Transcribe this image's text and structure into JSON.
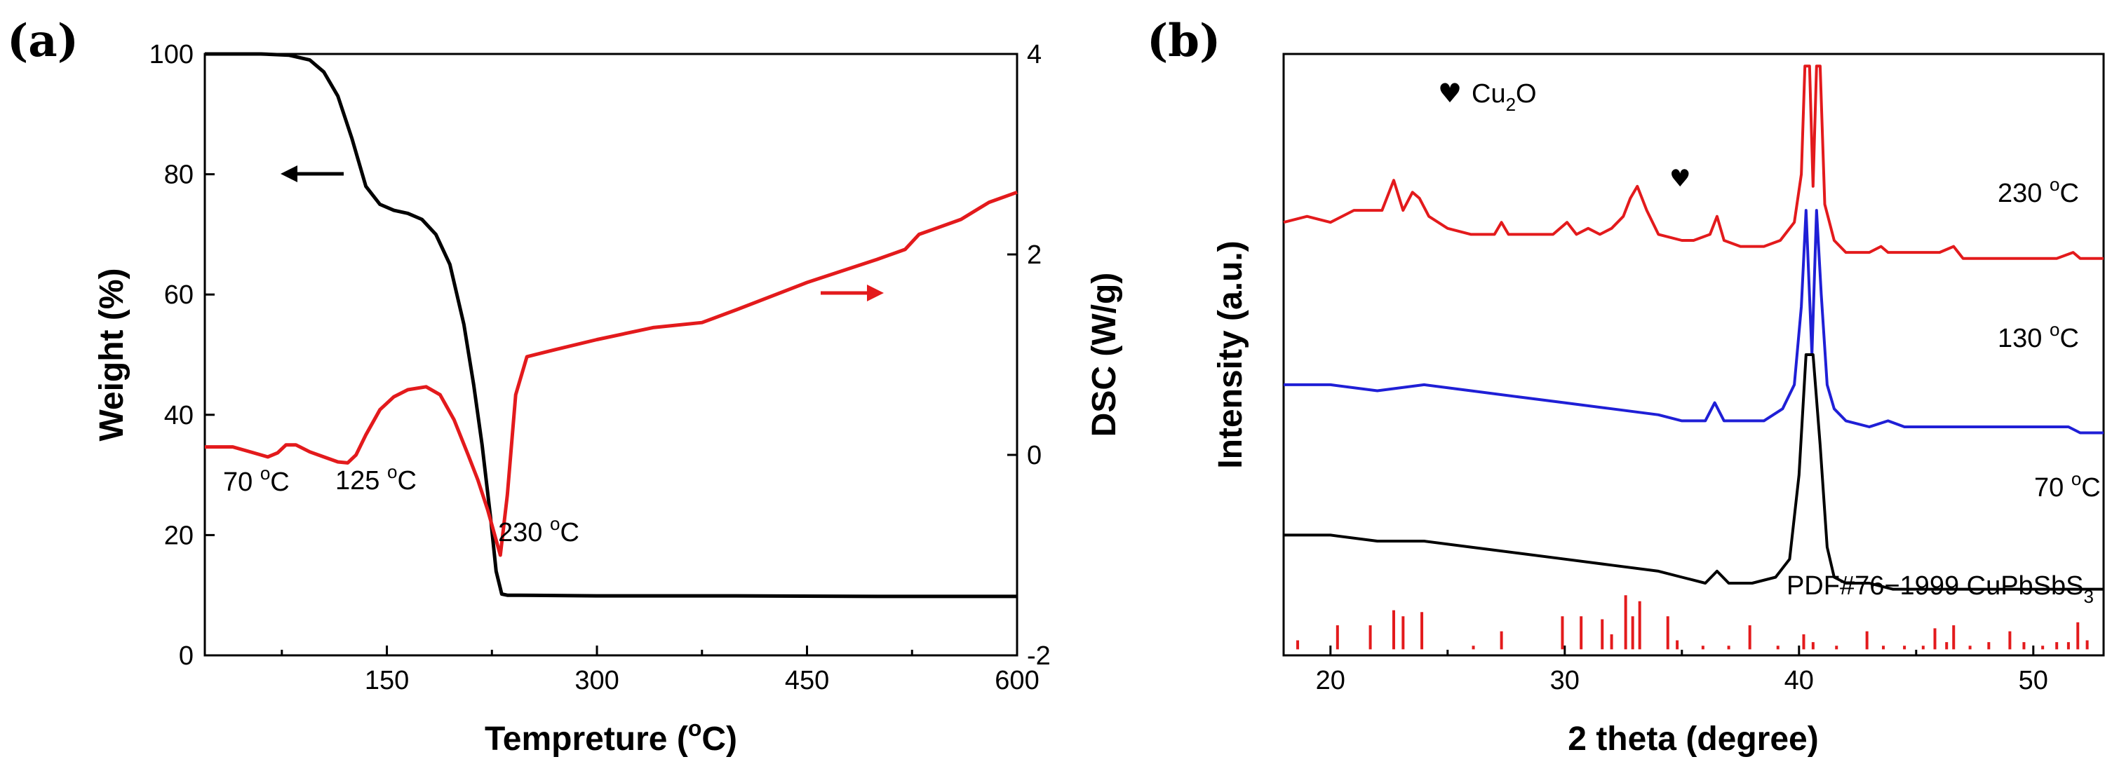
{
  "panels": {
    "a": {
      "label": "(a)",
      "xlabel_main": "Tempreture (",
      "xlabel_unit_sup": "o",
      "xlabel_end": "C)",
      "ylabel_left": "Weight (%)",
      "ylabel_right": "DSC (W/g)",
      "annotations": [
        {
          "text": "70 ",
          "sup": "o",
          "end": "C"
        },
        {
          "text": "125 ",
          "sup": "o",
          "end": "C"
        },
        {
          "text": "230 ",
          "sup": "o",
          "end": "C"
        }
      ]
    },
    "b": {
      "label": "(b)",
      "xlabel": "2 theta (degree)",
      "ylabel": "Intensity (a.u.)",
      "legend_symbol": "♥",
      "legend_text_main": "Cu",
      "legend_text_sub": "2",
      "legend_text_end": "O",
      "pdf_label_main": "PDF#76−1999 CuPbSbS",
      "pdf_label_sub": "3",
      "trace_labels": [
        {
          "text": "230 ",
          "sup": "o",
          "end": "C"
        },
        {
          "text": "130 ",
          "sup": "o",
          "end": "C"
        },
        {
          "text": "70 ",
          "sup": "o",
          "end": "C"
        }
      ]
    }
  },
  "chart_data": [
    {
      "type": "line",
      "xlim": [
        20,
        600
      ],
      "ylim": [
        0,
        100
      ],
      "y2lim": [
        -2,
        4
      ],
      "xticks": [
        150,
        300,
        450,
        600
      ],
      "yticks": [
        0,
        20,
        40,
        60,
        80,
        100
      ],
      "y2ticks": [
        -2,
        0,
        2,
        4
      ],
      "series": [
        {
          "color": "#000000",
          "axis": "left",
          "x": [
            20,
            60,
            80,
            95,
            105,
            115,
            125,
            135,
            145,
            155,
            165,
            175,
            185,
            195,
            205,
            212,
            218,
            224,
            228,
            232,
            236,
            245,
            300,
            400,
            500,
            600
          ],
          "y": [
            100,
            100,
            99.8,
            99,
            97,
            93,
            86,
            78,
            75,
            74,
            73.5,
            72.5,
            70,
            65,
            55,
            45,
            35,
            23,
            14,
            10.2,
            10,
            10,
            9.9,
            9.9,
            9.8,
            9.8
          ]
        },
        {
          "color": "#e31a1c",
          "axis": "right",
          "x": [
            20,
            40,
            55,
            65,
            72,
            78,
            85,
            95,
            105,
            115,
            122,
            128,
            135,
            145,
            155,
            165,
            178,
            188,
            198,
            208,
            215,
            222,
            228,
            231,
            236,
            242,
            250,
            270,
            300,
            340,
            375,
            400,
            450,
            500,
            520,
            530,
            540,
            560,
            580,
            600
          ],
          "y": [
            0.08,
            0.08,
            0.02,
            -0.02,
            0.02,
            0.1,
            0.1,
            0.03,
            -0.02,
            -0.07,
            -0.08,
            0.0,
            0.2,
            0.45,
            0.58,
            0.65,
            0.68,
            0.6,
            0.35,
            0.0,
            -0.25,
            -0.55,
            -0.85,
            -1.0,
            -0.4,
            0.6,
            0.98,
            1.05,
            1.15,
            1.27,
            1.32,
            1.45,
            1.72,
            1.95,
            2.05,
            2.2,
            2.25,
            2.35,
            2.52,
            2.62
          ]
        }
      ]
    },
    {
      "type": "line",
      "xlim": [
        18,
        53
      ],
      "xticks": [
        20,
        30,
        40,
        50
      ],
      "series": [
        {
          "name": "230 °C",
          "color": "#e31a1c",
          "x": [
            18,
            19,
            20,
            21,
            21.5,
            22.2,
            22.7,
            23.1,
            23.5,
            23.8,
            24.2,
            25,
            26,
            27,
            27.3,
            27.6,
            28.5,
            29.5,
            30.1,
            30.5,
            31,
            31.5,
            32,
            32.5,
            32.8,
            33.1,
            33.5,
            34,
            35,
            35.5,
            36.2,
            36.5,
            36.8,
            37.5,
            38.5,
            39.2,
            39.8,
            40.1,
            40.25,
            40.45,
            40.6,
            40.75,
            40.9,
            41.1,
            41.5,
            42,
            43,
            43.5,
            43.8,
            44.2,
            45,
            46,
            46.6,
            47,
            48,
            49,
            50,
            51,
            51.7,
            52,
            53
          ],
          "y": [
            0.72,
            0.73,
            0.72,
            0.74,
            0.74,
            0.74,
            0.79,
            0.74,
            0.77,
            0.76,
            0.73,
            0.71,
            0.7,
            0.7,
            0.72,
            0.7,
            0.7,
            0.7,
            0.72,
            0.7,
            0.71,
            0.7,
            0.71,
            0.73,
            0.76,
            0.78,
            0.74,
            0.7,
            0.69,
            0.69,
            0.7,
            0.73,
            0.69,
            0.68,
            0.68,
            0.69,
            0.72,
            0.8,
            0.98,
            0.98,
            0.78,
            0.98,
            0.98,
            0.75,
            0.69,
            0.67,
            0.67,
            0.68,
            0.67,
            0.67,
            0.67,
            0.67,
            0.68,
            0.66,
            0.66,
            0.66,
            0.66,
            0.66,
            0.67,
            0.66,
            0.66
          ]
        },
        {
          "name": "130 °C",
          "color": "#1f1fd6",
          "x": [
            18,
            20,
            22,
            24,
            26,
            28,
            30,
            32,
            34,
            35,
            36,
            36.4,
            36.8,
            37.5,
            38.5,
            39.3,
            39.8,
            40.1,
            40.3,
            40.55,
            40.75,
            40.95,
            41.2,
            41.5,
            42,
            43,
            43.8,
            44.5,
            46,
            48,
            50,
            51.5,
            52,
            53
          ],
          "y": [
            0.45,
            0.45,
            0.44,
            0.45,
            0.44,
            0.43,
            0.42,
            0.41,
            0.4,
            0.39,
            0.39,
            0.42,
            0.39,
            0.39,
            0.39,
            0.41,
            0.45,
            0.58,
            0.74,
            0.5,
            0.74,
            0.6,
            0.45,
            0.41,
            0.39,
            0.38,
            0.39,
            0.38,
            0.38,
            0.38,
            0.38,
            0.38,
            0.37,
            0.37
          ]
        },
        {
          "name": "70 °C",
          "color": "#000000",
          "x": [
            18,
            20,
            22,
            24,
            26,
            28,
            30,
            32,
            34,
            35,
            36,
            36.5,
            37,
            38,
            39,
            39.6,
            40,
            40.3,
            40.6,
            40.9,
            41.2,
            41.5,
            42,
            43,
            44,
            46,
            48,
            50,
            52,
            53
          ],
          "y": [
            0.2,
            0.2,
            0.19,
            0.19,
            0.18,
            0.17,
            0.16,
            0.15,
            0.14,
            0.13,
            0.12,
            0.14,
            0.12,
            0.12,
            0.13,
            0.16,
            0.3,
            0.5,
            0.5,
            0.35,
            0.18,
            0.13,
            0.12,
            0.12,
            0.11,
            0.11,
            0.11,
            0.11,
            0.11,
            0.11
          ]
        },
        {
          "name": "PDF#76-1999 CuPbSbS3",
          "color": "#e31a1c",
          "style": "sticks",
          "x": [
            18.6,
            20.3,
            21.7,
            22.7,
            23.1,
            23.9,
            26.1,
            27.3,
            29.9,
            30.7,
            31.6,
            32.0,
            32.6,
            32.9,
            33.2,
            34.4,
            34.8,
            35.9,
            37.0,
            37.9,
            39.1,
            40.2,
            40.6,
            41.6,
            42.9,
            43.6,
            44.5,
            45.3,
            45.8,
            46.3,
            46.6,
            47.3,
            48.1,
            49.0,
            49.6,
            50.4,
            51.0,
            51.5,
            51.9,
            52.3
          ],
          "y": [
            0.015,
            0.04,
            0.04,
            0.065,
            0.055,
            0.062,
            0.006,
            0.03,
            0.055,
            0.055,
            0.05,
            0.025,
            0.09,
            0.055,
            0.08,
            0.055,
            0.015,
            0.006,
            0.006,
            0.04,
            0.006,
            0.025,
            0.012,
            0.006,
            0.03,
            0.006,
            0.006,
            0.006,
            0.035,
            0.012,
            0.04,
            0.006,
            0.012,
            0.03,
            0.012,
            0.006,
            0.012,
            0.012,
            0.045,
            0.015
          ]
        }
      ]
    }
  ]
}
